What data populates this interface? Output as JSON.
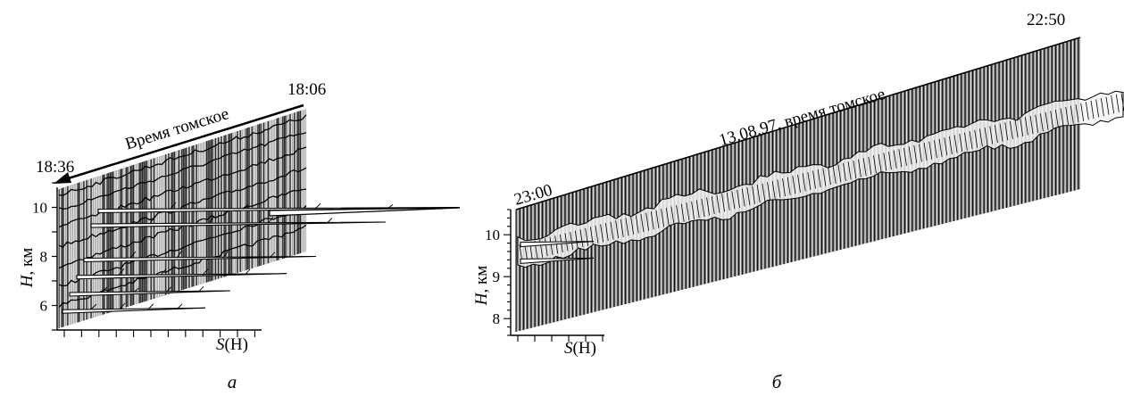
{
  "chart_data": [
    {
      "type": "area",
      "panel_label": "а",
      "time_start_label": "18:06",
      "time_end_label": "18:36",
      "time_axis_label": "Время томское",
      "ylabel_var": "H",
      "ylabel_unit": ", км",
      "xlabel_var": "S",
      "xlabel_arg": "(H)",
      "yticks": [
        6,
        8,
        10
      ],
      "ylim": [
        5,
        11
      ],
      "series": [
        {
          "name": "",
          "peak_heights_km": [
            5.9,
            6.6,
            7.3,
            8.0,
            9.4,
            10.0
          ]
        }
      ]
    },
    {
      "type": "area",
      "panel_label": "б",
      "time_start_label": "22:50",
      "time_end_label": "23:00",
      "time_axis_label": "13.08.97, время томское",
      "ylabel_var": "H",
      "ylabel_unit": ", км",
      "xlabel_var": "S",
      "xlabel_arg": "(H)",
      "yticks": [
        8,
        9,
        10
      ],
      "ylim": [
        7.6,
        10.6
      ],
      "series": [
        {
          "name": "",
          "peak_heights_km": [
            9.4,
            9.8
          ]
        }
      ]
    }
  ]
}
